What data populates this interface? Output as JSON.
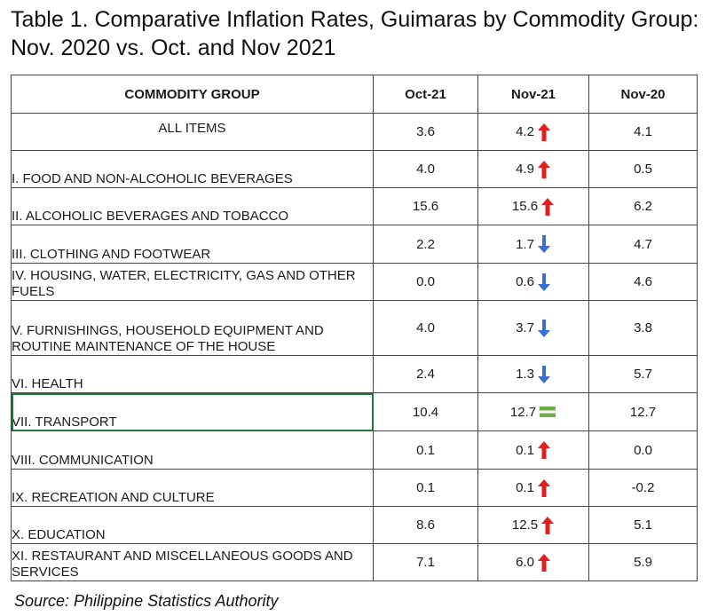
{
  "title": "Table 1. Comparative Inflation Rates, Guimaras by Commodity Group: Nov. 2020 vs. Oct. and Nov 2021",
  "headers": {
    "commodity": "COMMODITY GROUP",
    "oct21": "Oct-21",
    "nov21": "Nov-21",
    "nov20": "Nov-20"
  },
  "colors": {
    "up": "#e02020",
    "down": "#3a6fd0",
    "same": "#6cae47",
    "selection": "#1e7a3c"
  },
  "rows": [
    {
      "label": "ALL ITEMS",
      "oct21": "3.6",
      "nov21": "4.2",
      "trend": "up",
      "nov20": "4.1"
    },
    {
      "label": "I. FOOD AND NON-ALCOHOLIC BEVERAGES",
      "oct21": "4.0",
      "nov21": "4.9",
      "trend": "up",
      "nov20": "0.5"
    },
    {
      "label": "II. ALCOHOLIC BEVERAGES AND TOBACCO",
      "oct21": "15.6",
      "nov21": "15.6",
      "trend": "up",
      "nov20": "6.2"
    },
    {
      "label": "III. CLOTHING AND FOOTWEAR",
      "oct21": "2.2",
      "nov21": "1.7",
      "trend": "down",
      "nov20": "4.7"
    },
    {
      "label": "IV. HOUSING, WATER, ELECTRICITY, GAS AND OTHER FUELS",
      "oct21": "0.0",
      "nov21": "0.6",
      "trend": "down",
      "nov20": "4.6"
    },
    {
      "label": "V. FURNISHINGS, HOUSEHOLD EQUIPMENT AND ROUTINE MAINTENANCE OF THE  HOUSE",
      "oct21": "4.0",
      "nov21": "3.7",
      "trend": "down",
      "nov20": "3.8"
    },
    {
      "label": "VI. HEALTH",
      "oct21": "2.4",
      "nov21": "1.3",
      "trend": "down",
      "nov20": "5.7"
    },
    {
      "label": "VII. TRANSPORT",
      "oct21": "10.4",
      "nov21": "12.7",
      "trend": "same",
      "nov20": "12.7"
    },
    {
      "label": "VIII. COMMUNICATION",
      "oct21": "0.1",
      "nov21": "0.1",
      "trend": "up",
      "nov20": "0.0"
    },
    {
      "label": "IX. RECREATION AND CULTURE",
      "oct21": "0.1",
      "nov21": "0.1",
      "trend": "up",
      "nov20": "-0.2"
    },
    {
      "label": "X. EDUCATION",
      "oct21": "8.6",
      "nov21": "12.5",
      "trend": "up",
      "nov20": "5.1"
    },
    {
      "label": "XI. RESTAURANT AND MISCELLANEOUS GOODS AND SERVICES",
      "oct21": "7.1",
      "nov21": "6.0",
      "trend": "up",
      "nov20": "5.9"
    }
  ],
  "source": "Source: Philippine Statistics Authority"
}
